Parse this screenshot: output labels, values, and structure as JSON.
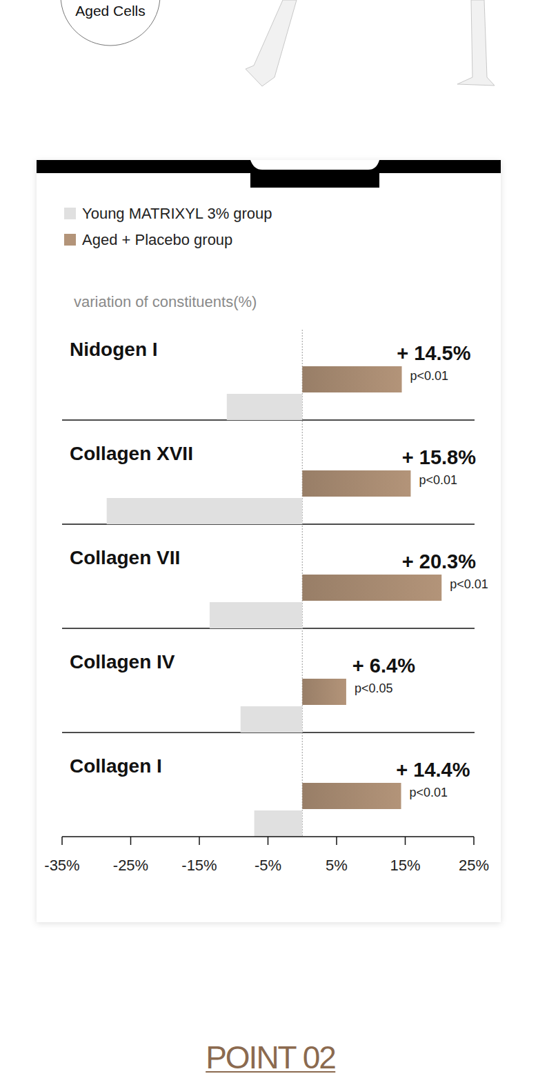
{
  "page": {
    "top_label": "Aged Cells",
    "footer": "POINT 02"
  },
  "chart_data": {
    "type": "bar",
    "orientation": "horizontal",
    "subtitle": "variation of constituents(%)",
    "categories": [
      "Nidogen I",
      "Collagen XVII",
      "Collagen VII",
      "Collagen IV",
      "Collagen I"
    ],
    "series": [
      {
        "name": "Young MATRIXYL 3% group",
        "color": "#e0e0e0",
        "values": [
          -11,
          -28.5,
          -13.5,
          -9,
          -7
        ]
      },
      {
        "name": "Aged + Placebo group",
        "color": "#b39479",
        "values": [
          14.5,
          15.8,
          20.3,
          6.4,
          14.4
        ],
        "value_labels": [
          "+ 14.5%",
          "+ 15.8%",
          "+ 20.3%",
          "+ 6.4%",
          "+ 14.4%"
        ],
        "annotations": [
          "p<0.01",
          "p<0.01",
          "p<0.01",
          "p<0.05",
          "p<0.01"
        ]
      }
    ],
    "xlim": [
      -35,
      25
    ],
    "xticks": [
      {
        "value": -35,
        "label": "-35%"
      },
      {
        "value": -25,
        "label": "-25%"
      },
      {
        "value": -15,
        "label": "-15%"
      },
      {
        "value": -5,
        "label": "-5%"
      },
      {
        "value": 5,
        "label": "5%"
      },
      {
        "value": 15,
        "label": "15%"
      },
      {
        "value": 25,
        "label": "25%"
      }
    ],
    "data_labels": true,
    "legend": "top-left",
    "grid": false
  }
}
